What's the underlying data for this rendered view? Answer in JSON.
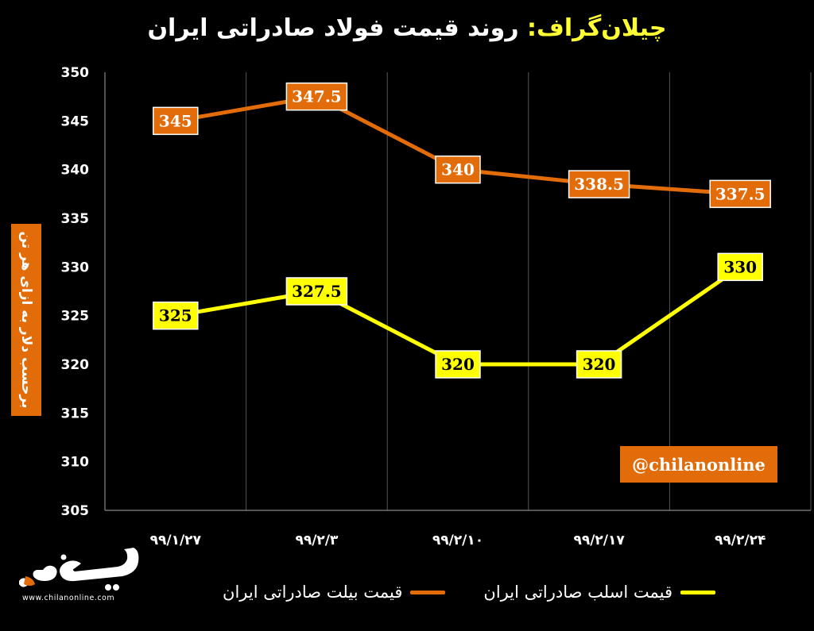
{
  "title": {
    "brand": "چیلان‌گراف:",
    "main": "روند قیمت فولاد صادراتی ایران"
  },
  "watermark": "@chilanonline",
  "logo": {
    "text": "www.chilanonline.com"
  },
  "colors": {
    "billet": "#e36c0a",
    "slab": "#ffff00",
    "background": "#000000"
  },
  "chart_data": {
    "type": "line",
    "title": "روند قیمت فولاد صادراتی ایران",
    "ylabel": "برحسب دلار به ازای هر تن",
    "xlabel": "",
    "categories": [
      "۹۹/۱/۲۷",
      "۹۹/۲/۳",
      "۹۹/۲/۱۰",
      "۹۹/۲/۱۷",
      "۹۹/۲/۲۴"
    ],
    "ylim": [
      305,
      350
    ],
    "yticks": [
      305,
      310,
      315,
      320,
      325,
      330,
      335,
      340,
      345,
      350
    ],
    "grid": "vertical",
    "legend": "bottom",
    "series": [
      {
        "name": "قیمت بیلت صادراتی ایران",
        "values": [
          345,
          347.5,
          340,
          338.5,
          337.5
        ],
        "labels": [
          "345",
          "347.5",
          "340",
          "338.5",
          "337.5"
        ],
        "color": "#e36c0a"
      },
      {
        "name": "قیمت اسلب صادراتی ایران",
        "values": [
          325,
          327.5,
          320,
          320,
          330
        ],
        "labels": [
          "325",
          "327.5",
          "320",
          "320",
          "330"
        ],
        "color": "#ffff00"
      }
    ]
  }
}
